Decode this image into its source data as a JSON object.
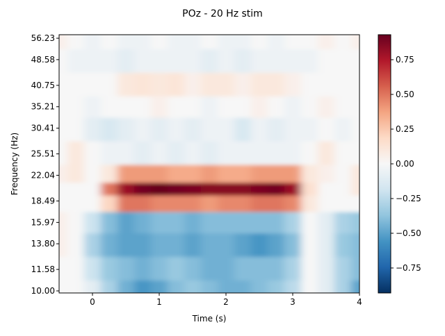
{
  "chart_data": {
    "type": "heatmap",
    "title": "POz - 20 Hz stim",
    "xlabel": "Time (s)",
    "ylabel": "Frequency (Hz)",
    "xlim": [
      -0.5,
      4
    ],
    "ylim": [
      9.86,
      57.6
    ],
    "yscale": "log",
    "x_ticks": [
      "0",
      "1",
      "2",
      "3",
      "4"
    ],
    "x_tick_values": [
      0,
      1,
      2,
      3,
      4
    ],
    "y_ticks": [
      "10.00",
      "11.58",
      "13.80",
      "15.97",
      "18.49",
      "22.04",
      "25.51",
      "30.41",
      "35.21",
      "40.75",
      "48.58",
      "56.23"
    ],
    "y_tick_values": [
      10.0,
      11.58,
      13.8,
      15.97,
      18.49,
      22.04,
      25.51,
      30.41,
      35.21,
      40.75,
      48.58,
      56.23
    ],
    "colormap": "RdBu_r",
    "colormap_stops": [
      "#053061",
      "#2166ac",
      "#4393c3",
      "#92c5de",
      "#d1e5f0",
      "#f7f7f7",
      "#fddbc7",
      "#f4a582",
      "#d6604d",
      "#b2182b",
      "#67001f"
    ],
    "vlim": [
      -0.93,
      0.93
    ],
    "colorbar_ticks": [
      "0.75",
      "0.50",
      "0.25",
      "0.00",
      "−0.25",
      "−0.50",
      "−0.75"
    ],
    "colorbar_tick_values": [
      0.75,
      0.5,
      0.25,
      0,
      -0.25,
      -0.5,
      -0.75
    ],
    "times": [
      -0.5,
      -0.25,
      0,
      0.25,
      0.5,
      0.75,
      1,
      1.25,
      1.5,
      1.75,
      2,
      2.25,
      2.5,
      2.75,
      3,
      3.25,
      3.5,
      3.75,
      4
    ],
    "freqs": [
      10.0,
      11.58,
      13.8,
      15.97,
      18.49,
      20.0,
      22.04,
      25.51,
      30.41,
      35.21,
      40.75,
      48.58,
      56.23
    ],
    "values": [
      [
        0,
        0,
        -0.1,
        -0.3,
        -0.45,
        -0.55,
        -0.5,
        -0.4,
        -0.35,
        -0.4,
        -0.45,
        -0.45,
        -0.4,
        -0.35,
        -0.25,
        0,
        -0.1,
        -0.3,
        -0.5
      ],
      [
        0,
        0,
        -0.2,
        -0.35,
        -0.4,
        -0.45,
        -0.4,
        -0.35,
        -0.4,
        -0.45,
        -0.45,
        -0.4,
        -0.4,
        -0.4,
        -0.3,
        0,
        -0.1,
        -0.3,
        -0.4
      ],
      [
        0.05,
        0,
        -0.3,
        -0.45,
        -0.5,
        -0.5,
        -0.45,
        -0.45,
        -0.5,
        -0.45,
        -0.45,
        -0.5,
        -0.55,
        -0.5,
        -0.4,
        0,
        -0.1,
        -0.35,
        -0.4
      ],
      [
        0.05,
        0,
        -0.2,
        -0.4,
        -0.5,
        -0.45,
        -0.4,
        -0.4,
        -0.45,
        -0.4,
        -0.4,
        -0.4,
        -0.4,
        -0.4,
        -0.3,
        0,
        -0.1,
        -0.3,
        -0.35
      ],
      [
        0,
        0,
        0,
        0.2,
        0.5,
        0.5,
        0.45,
        0.45,
        0.45,
        0.4,
        0.45,
        0.45,
        0.5,
        0.5,
        0.45,
        0.1,
        0,
        0,
        0
      ],
      [
        0,
        0,
        0,
        0.5,
        0.8,
        0.9,
        0.93,
        0.9,
        0.88,
        0.85,
        0.85,
        0.85,
        0.88,
        0.9,
        0.8,
        0.15,
        0,
        0,
        0.1
      ],
      [
        0.05,
        0.1,
        0,
        0.1,
        0.4,
        0.4,
        0.4,
        0.35,
        0.35,
        0.4,
        0.35,
        0.35,
        0.4,
        0.4,
        0.4,
        0.1,
        0.05,
        0,
        0.1
      ],
      [
        0,
        0.1,
        0,
        -0.05,
        -0.05,
        -0.1,
        -0.05,
        -0.1,
        -0.05,
        -0.1,
        -0.05,
        -0.05,
        -0.05,
        -0.05,
        -0.05,
        0,
        0.1,
        0,
        0
      ],
      [
        0,
        0,
        -0.1,
        -0.15,
        -0.1,
        -0.05,
        -0.1,
        -0.05,
        -0.1,
        -0.05,
        -0.05,
        -0.15,
        -0.05,
        -0.1,
        -0.05,
        -0.05,
        0,
        -0.05,
        0
      ],
      [
        0,
        0,
        -0.05,
        0,
        0,
        0,
        0.05,
        0,
        0,
        -0.05,
        0,
        0,
        0.05,
        0,
        -0.05,
        0,
        0.05,
        0,
        0
      ],
      [
        0,
        0,
        0,
        0,
        0.1,
        0.12,
        0.1,
        0.12,
        0.05,
        0.1,
        0.1,
        0.05,
        0.1,
        0.1,
        0.05,
        0,
        0,
        0,
        0
      ],
      [
        0,
        -0.05,
        -0.05,
        -0.05,
        -0.1,
        -0.05,
        -0.05,
        -0.05,
        -0.05,
        -0.1,
        -0.05,
        -0.1,
        -0.05,
        -0.05,
        -0.05,
        -0.05,
        0,
        0,
        0
      ],
      [
        0.05,
        0,
        -0.05,
        0,
        -0.05,
        -0.05,
        0,
        -0.05,
        -0.05,
        0,
        -0.05,
        -0.05,
        0,
        -0.05,
        0,
        0,
        0.05,
        0,
        0.05
      ]
    ]
  }
}
